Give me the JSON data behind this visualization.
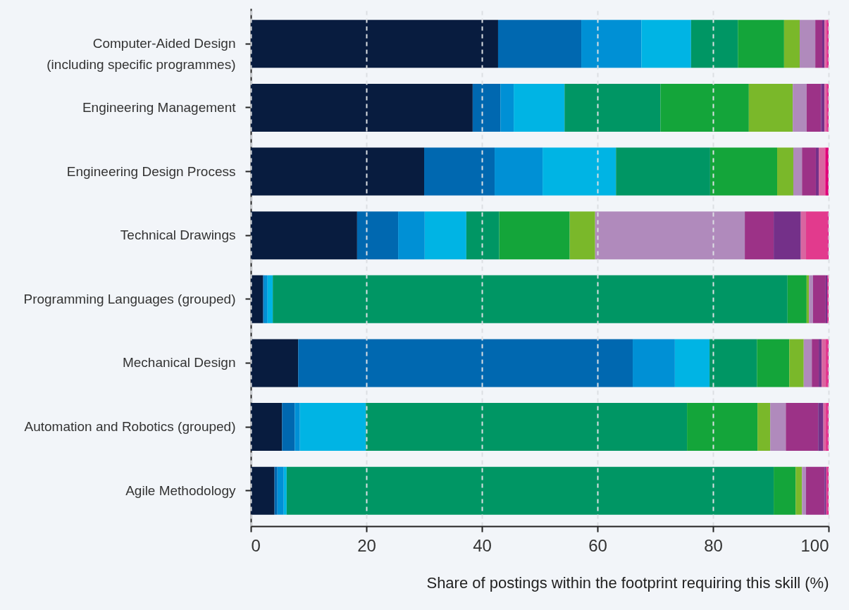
{
  "chart_data": {
    "type": "bar",
    "orientation": "horizontal",
    "stacked": true,
    "xlabel": "Share of postings within the footprint requiring this skill (%)",
    "categories": [
      "Computer-Aided Design (including specific programmes)",
      "Engineering Management",
      "Engineering Design Process",
      "Technical Drawings",
      "Programming Languages (grouped)",
      "Mechanical Design",
      "Automation and Robotics (grouped)",
      "Agile Methodology"
    ],
    "series": [
      {
        "color": "#081c3f",
        "values": [
          42.8,
          38.4,
          30.0,
          18.4,
          2.1,
          8.2,
          5.4,
          4.1
        ]
      },
      {
        "color": "#0068b0",
        "values": [
          14.4,
          4.8,
          12.2,
          7.1,
          0.2,
          57.9,
          2.2,
          0.5
        ]
      },
      {
        "color": "#0090d5",
        "values": [
          10.4,
          2.3,
          8.3,
          4.6,
          0.6,
          7.3,
          0.9,
          1.1
        ]
      },
      {
        "color": "#00b4e4",
        "values": [
          8.6,
          8.8,
          12.7,
          7.2,
          0.9,
          6.0,
          11.4,
          0.5
        ]
      },
      {
        "color": "#009664",
        "values": [
          8.1,
          16.6,
          16.3,
          5.7,
          89.1,
          8.2,
          55.6,
          84.3
        ]
      },
      {
        "color": "#14a53a",
        "values": [
          8.0,
          15.3,
          11.6,
          12.2,
          3.3,
          5.6,
          12.2,
          3.8
        ]
      },
      {
        "color": "#7ab82a",
        "values": [
          2.7,
          7.6,
          2.8,
          4.4,
          0.4,
          2.5,
          2.2,
          1.1
        ]
      },
      {
        "color": "#b08abc",
        "values": [
          2.7,
          2.4,
          1.5,
          25.9,
          0.7,
          1.4,
          2.7,
          0.7
        ]
      },
      {
        "color": "#9c3287",
        "values": [
          1.2,
          2.5,
          2.4,
          5.0,
          2.2,
          1.2,
          5.6,
          3.2
        ]
      },
      {
        "color": "#743089",
        "values": [
          0.4,
          0.6,
          0.5,
          4.7,
          0.3,
          0.5,
          0.9,
          0.3
        ]
      },
      {
        "color": "#d965a0",
        "values": [
          0.3,
          0.3,
          1.0,
          0.9,
          0,
          0.7,
          0.4,
          0
        ]
      },
      {
        "color": "#e23a8d",
        "values": [
          0.2,
          0.2,
          0.2,
          3.7,
          0,
          0.3,
          0.3,
          0.2
        ]
      },
      {
        "color": "#e0007a",
        "values": [
          0.2,
          0.2,
          0.5,
          0.2,
          0.2,
          0.2,
          0.2,
          0.2
        ]
      }
    ],
    "xlim": [
      0,
      100
    ],
    "xticks": [
      0,
      20,
      40,
      60,
      80,
      100
    ],
    "grid": "x"
  }
}
